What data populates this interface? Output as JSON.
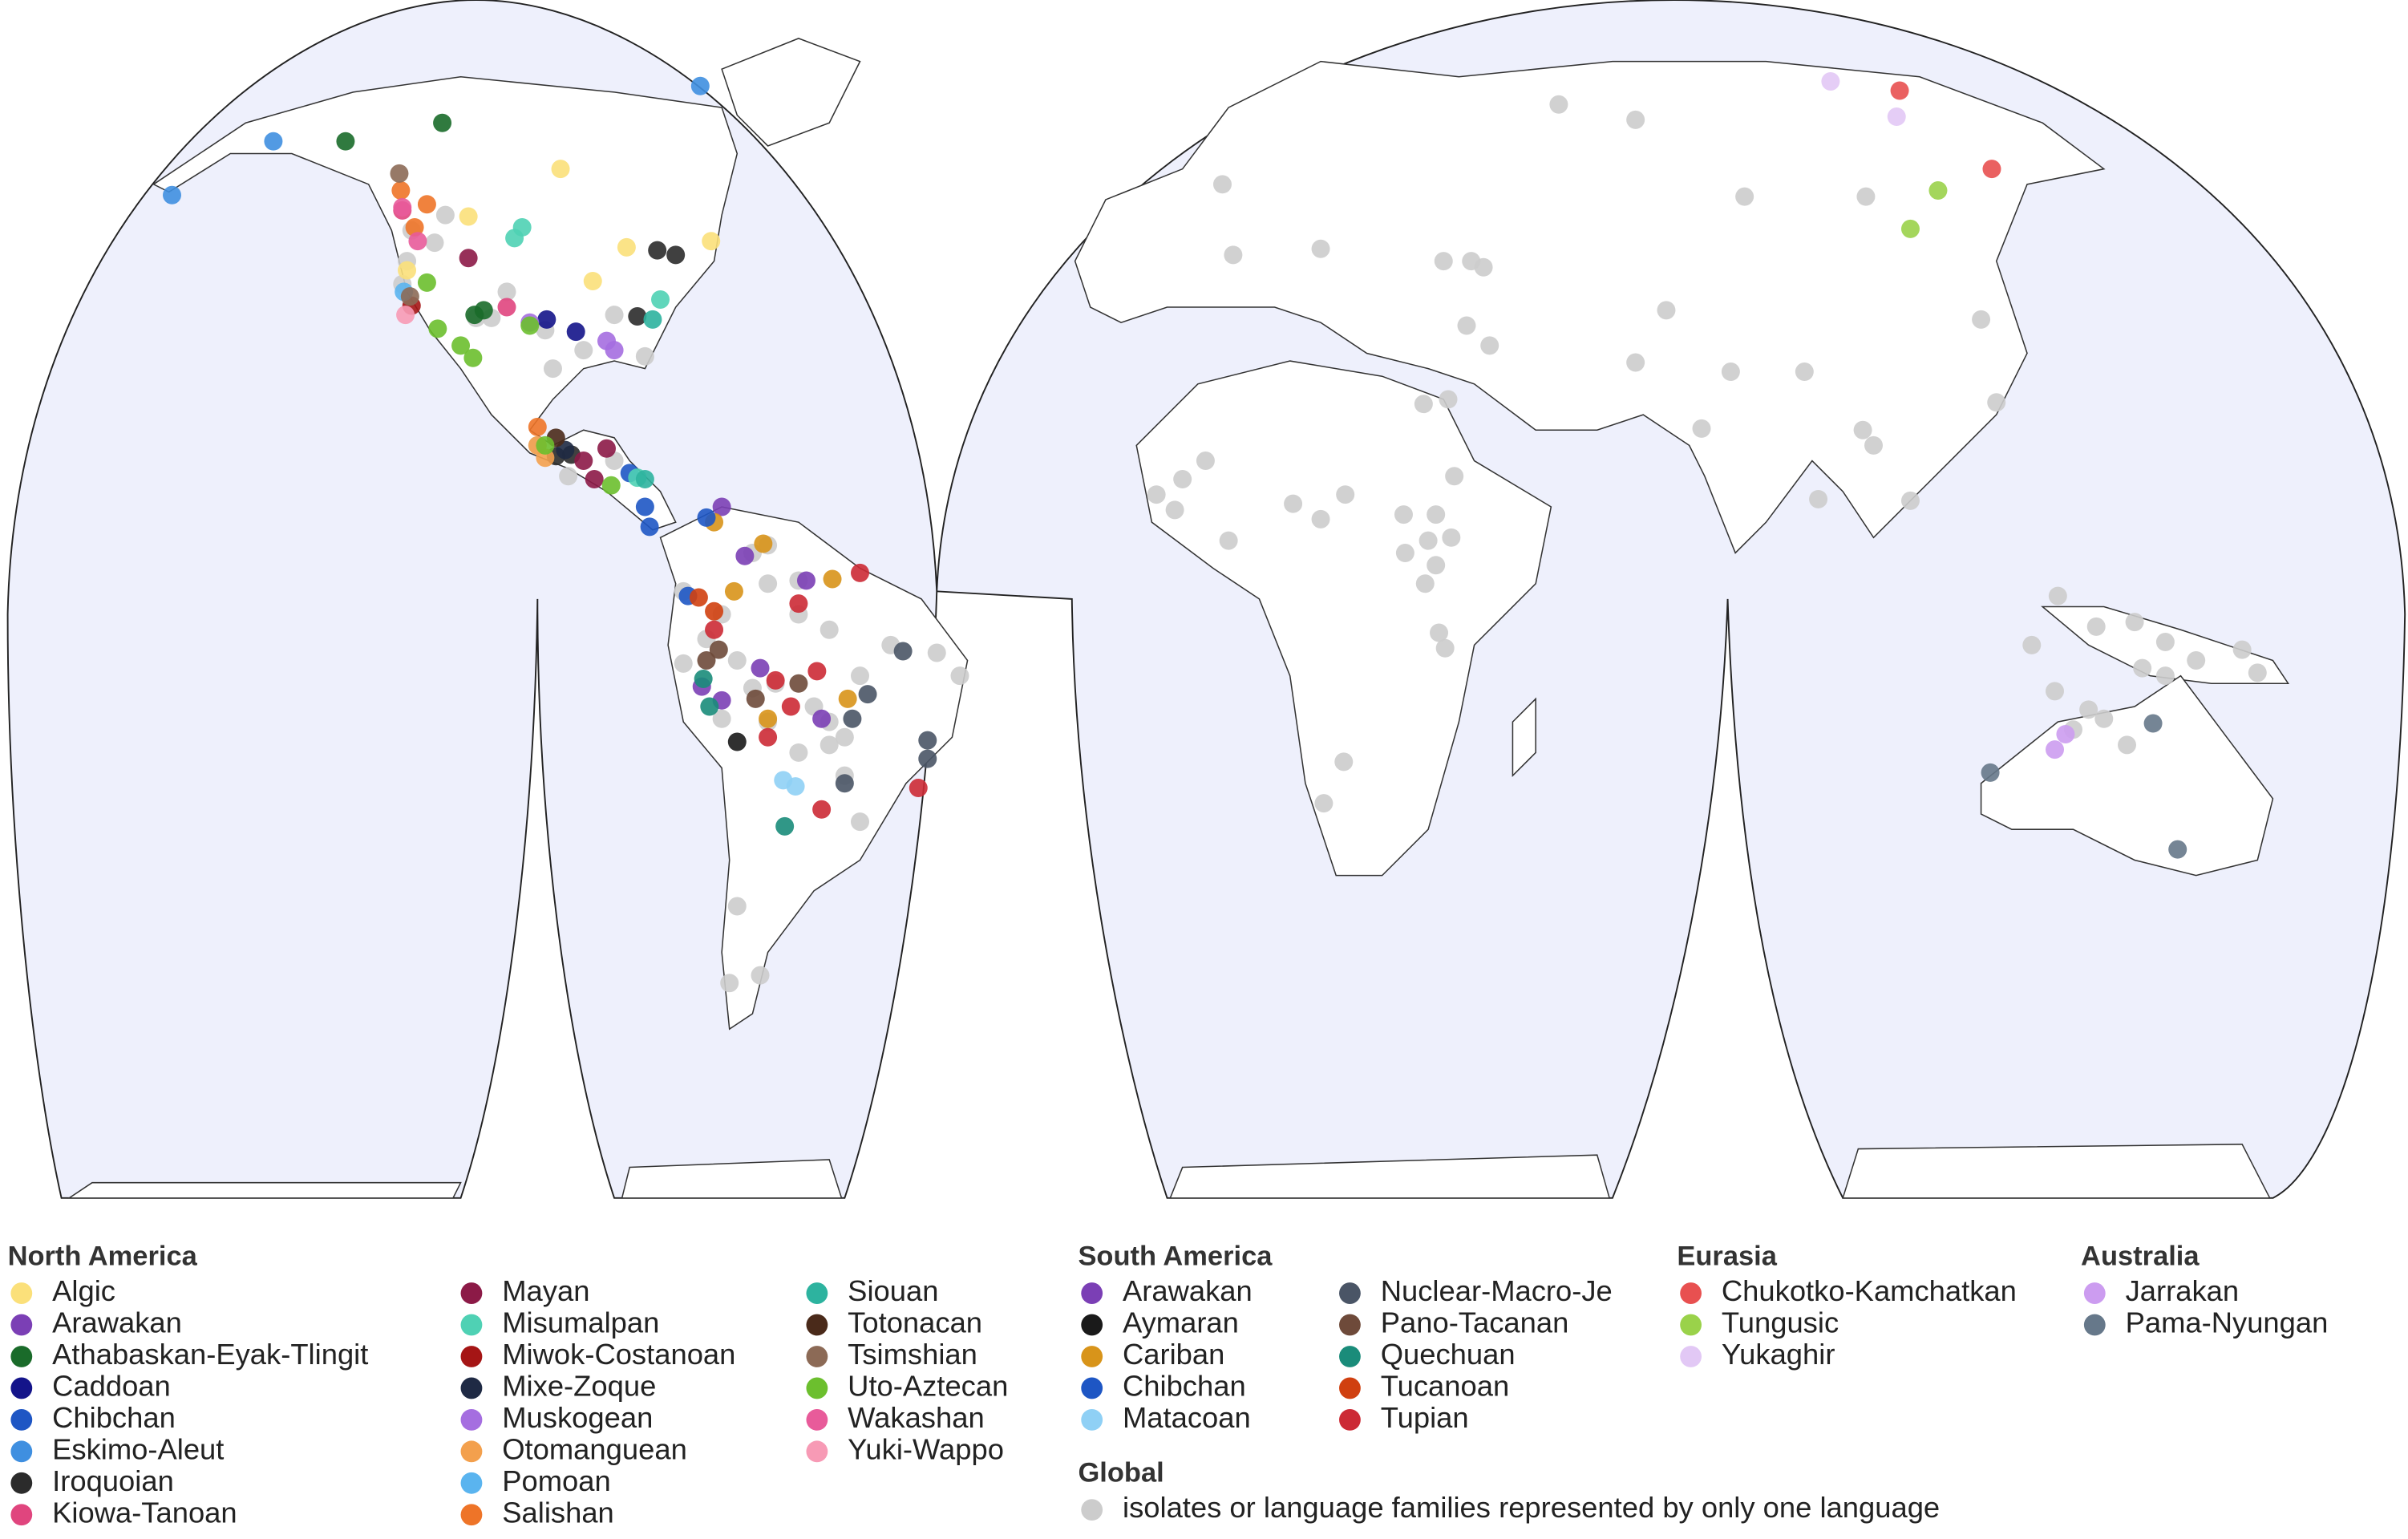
{
  "legend": {
    "groups": [
      {
        "title": "North America",
        "items": [
          {
            "name": "Algic",
            "color": "#fbe07a"
          },
          {
            "name": "Arawakan",
            "color": "#7b3fb5"
          },
          {
            "name": "Athabaskan-Eyak-Tlingit",
            "color": "#1a6b2a"
          },
          {
            "name": "Caddoan",
            "color": "#14148a"
          },
          {
            "name": "Chibchan",
            "color": "#1e56c4"
          },
          {
            "name": "Eskimo-Aleut",
            "color": "#3f8fe0"
          },
          {
            "name": "Iroquoian",
            "color": "#2b2b2b"
          },
          {
            "name": "Kiowa-Tanoan",
            "color": "#e0457e"
          },
          {
            "name": "Mayan",
            "color": "#8c1a47"
          },
          {
            "name": "Misumalpan",
            "color": "#4fd1b4"
          },
          {
            "name": "Miwok-Costanoan",
            "color": "#a51515"
          },
          {
            "name": "Mixe-Zoque",
            "color": "#1f2a44"
          },
          {
            "name": "Muskogean",
            "color": "#a56ee0"
          },
          {
            "name": "Otomanguean",
            "color": "#f3a04d"
          },
          {
            "name": "Pomoan",
            "color": "#5ab4ef"
          },
          {
            "name": "Salishan",
            "color": "#ee7428"
          },
          {
            "name": "Siouan",
            "color": "#2db39f"
          },
          {
            "name": "Totonacan",
            "color": "#4a2a1a"
          },
          {
            "name": "Tsimshian",
            "color": "#8c6a56"
          },
          {
            "name": "Uto-Aztecan",
            "color": "#6cbf2e"
          },
          {
            "name": "Wakashan",
            "color": "#e85b9a"
          },
          {
            "name": "Yuki-Wappo",
            "color": "#f79ab5"
          }
        ]
      },
      {
        "title": "South America",
        "items": [
          {
            "name": "Arawakan",
            "color": "#7b3fb5"
          },
          {
            "name": "Aymaran",
            "color": "#1a1a1a"
          },
          {
            "name": "Cariban",
            "color": "#d8941a"
          },
          {
            "name": "Chibchan",
            "color": "#1e56c4"
          },
          {
            "name": "Matacoan",
            "color": "#8fd0f5"
          },
          {
            "name": "Nuclear-Macro-Je",
            "color": "#4a5566"
          },
          {
            "name": "Pano-Tacanan",
            "color": "#6e4a3a"
          },
          {
            "name": "Quechuan",
            "color": "#1a8c7a"
          },
          {
            "name": "Tucanoan",
            "color": "#d04010"
          },
          {
            "name": "Tupian",
            "color": "#cc2a35"
          }
        ]
      },
      {
        "title": "Eurasia",
        "items": [
          {
            "name": "Chukotko-Kamchatkan",
            "color": "#e85050"
          },
          {
            "name": "Tungusic",
            "color": "#9ad24a"
          },
          {
            "name": "Yukaghir",
            "color": "#e2c8f5"
          }
        ]
      },
      {
        "title": "Australia",
        "items": [
          {
            "name": "Jarrakan",
            "color": "#cc9cf0"
          },
          {
            "name": "Pama-Nyungan",
            "color": "#66788a"
          }
        ]
      },
      {
        "title": "Global",
        "items": [
          {
            "name": "isolates or language families represented by only one language",
            "color": "#cccccc"
          }
        ]
      }
    ]
  }
}
